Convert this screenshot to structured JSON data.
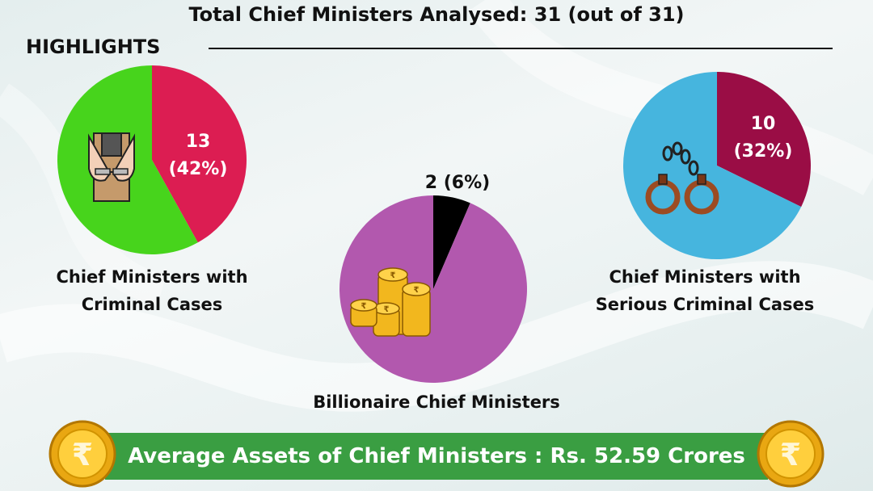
{
  "header": {
    "title": "Total Chief Ministers Analysed: 31 (out of 31)",
    "highlights_label": "HIGHLIGHTS"
  },
  "chart_data": [
    {
      "type": "pie",
      "caption": "Chief Ministers with Criminal Cases",
      "slices": [
        {
          "value": 13,
          "label_line1": "13",
          "label_line2": "(42%)",
          "color": "#dc1d52"
        },
        {
          "value": 18,
          "color": "#47d41c"
        }
      ]
    },
    {
      "type": "pie",
      "caption": "Billionaire Chief Ministers",
      "slices": [
        {
          "value": 2,
          "label_line1": "2 (6%)",
          "color": "#000000"
        },
        {
          "value": 29,
          "color": "#b258ae"
        }
      ]
    },
    {
      "type": "pie",
      "caption": "Chief Ministers with Serious Criminal Cases",
      "slices": [
        {
          "value": 10,
          "label_line1": "10",
          "label_line2": "(32%)",
          "color": "#9a0d45"
        },
        {
          "value": 21,
          "color": "#46b5de"
        }
      ]
    }
  ],
  "captions": {
    "criminal_line1": "Chief Ministers with",
    "criminal_line2": "Criminal Cases",
    "billionaire": "Billionaire Chief Ministers",
    "serious_line1": "Chief Ministers with",
    "serious_line2": "Serious Criminal Cases"
  },
  "pie_labels": {
    "criminal_line1": "13",
    "criminal_line2": "(42%)",
    "billionaire": "2 (6%)",
    "serious_line1": "10",
    "serious_line2": "(32%)"
  },
  "banner": {
    "text": "Average Assets of Chief Ministers : Rs. 52.59 Crores",
    "color": "#3a9e42"
  },
  "icons": [
    "handcuffed-hands-icon",
    "gold-coin-stack-icon",
    "handcuffs-icon",
    "rupee-coin-icon"
  ],
  "currency_symbol": "₹"
}
